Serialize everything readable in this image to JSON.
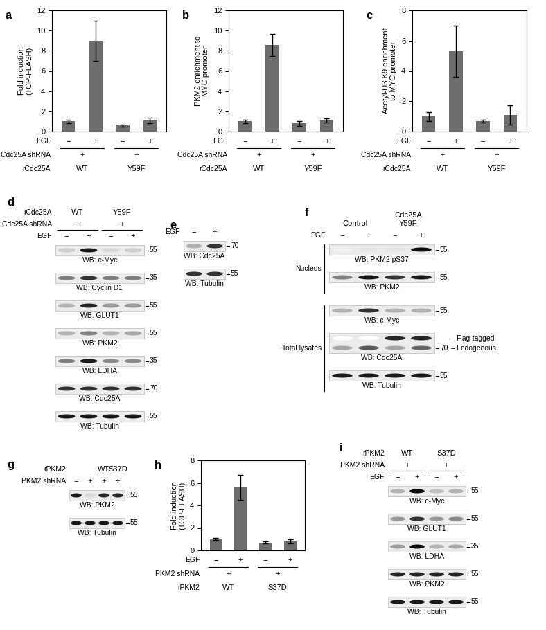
{
  "chart_data": [
    {
      "type": "bar",
      "title": "a",
      "y_label": "Fold induction\n(TOP-FLASH)",
      "values": [
        1.0,
        9.0,
        0.6,
        1.1
      ],
      "error": [
        0.15,
        2.0,
        0.1,
        0.25
      ],
      "color": "#6d6d6d",
      "ylim": [
        0,
        12
      ],
      "yticks": [
        0,
        2,
        4,
        6,
        8,
        10,
        12
      ],
      "tick_labels": "y",
      "conditions": [
        {
          "label": "EGF",
          "cells": [
            "−",
            "+",
            "−",
            "+"
          ],
          "span": 1
        },
        {
          "label": "Cdc25A shRNA",
          "cells": [
            "+",
            "+"
          ],
          "span": 2
        },
        {
          "label": "rCdc25A",
          "cells": [
            "WT",
            "Y59F"
          ],
          "span": 2
        }
      ]
    },
    {
      "type": "bar",
      "title": "b",
      "y_label": "PKM2 enrichment to\nMYC promoter",
      "values": [
        1.0,
        8.6,
        0.8,
        1.1
      ],
      "error": [
        0.15,
        1.1,
        0.25,
        0.2
      ],
      "color": "#6d6d6d",
      "ylim": [
        0,
        12
      ],
      "yticks": [
        0,
        2,
        4,
        6,
        8,
        10,
        12
      ],
      "tick_labels": "y",
      "conditions": [
        {
          "label": "EGF",
          "cells": [
            "−",
            "+",
            "−",
            "+"
          ],
          "span": 1
        },
        {
          "label": "Cdc25A shRNA",
          "cells": [
            "+",
            "+"
          ],
          "span": 2
        },
        {
          "label": "rCdc25A",
          "cells": [
            "WT",
            "Y59F"
          ],
          "span": 2
        }
      ]
    },
    {
      "type": "bar",
      "title": "c",
      "y_label": "Acetyl-H3 K9 enrichment\nto MYC promoter",
      "values": [
        1.0,
        5.3,
        0.7,
        1.1
      ],
      "error": [
        0.3,
        1.7,
        0.1,
        0.65
      ],
      "color": "#6d6d6d",
      "ylim": [
        0,
        8
      ],
      "yticks": [
        0,
        2,
        4,
        6,
        8
      ],
      "tick_labels": "y",
      "conditions": [
        {
          "label": "EGF",
          "cells": [
            "−",
            "+",
            "−",
            "+"
          ],
          "span": 1
        },
        {
          "label": "Cdc25A shRNA",
          "cells": [
            "+",
            "+"
          ],
          "span": 2
        },
        {
          "label": "rCdc25A",
          "cells": [
            "WT",
            "Y59F"
          ],
          "span": 2
        }
      ]
    },
    {
      "type": "bar",
      "title": "h",
      "y_label": "Fold induction\n(TOP-FLASH)",
      "values": [
        1.0,
        5.6,
        0.7,
        0.8
      ],
      "error": [
        0.1,
        1.1,
        0.1,
        0.2
      ],
      "color": "#6d6d6d",
      "ylim": [
        0,
        8
      ],
      "yticks": [
        0,
        2,
        4,
        6,
        8
      ],
      "tick_labels": "y",
      "conditions": [
        {
          "label": "EGF",
          "cells": [
            "−",
            "+",
            "−",
            "+"
          ],
          "span": 1
        },
        {
          "label": "PKM2 shRNA",
          "cells": [
            "+",
            "+"
          ],
          "span": 2
        },
        {
          "label": "rPKM2",
          "cells": [
            "WT",
            "S37D"
          ],
          "span": 2
        }
      ]
    }
  ],
  "blots": [
    {
      "panel": "d",
      "conditions": [
        {
          "label": "rCdc25A",
          "cells": [
            "WT",
            "Y59F"
          ],
          "span": 2
        },
        {
          "label": "Cdc25A shRNA",
          "cells": [
            "+",
            "+"
          ],
          "span": 2
        },
        {
          "label": "EGF",
          "cells": [
            "−",
            "+",
            "−",
            "+"
          ],
          "span": 1
        }
      ],
      "sections": [
        {
          "blots": [
            {
              "label": "WB: c-Myc",
              "marker": 55,
              "intensities": [
                0.2,
                0.9,
                0.15,
                0.2
              ]
            },
            {
              "label": "WB: Cyclin D1",
              "marker": 35,
              "intensities": [
                0.5,
                0.8,
                0.5,
                0.5
              ]
            },
            {
              "label": "WB: GLUT1",
              "marker": 55,
              "intensities": [
                0.3,
                0.85,
                0.4,
                0.4
              ]
            },
            {
              "label": "WB: PKM2",
              "marker": 55,
              "intensities": [
                0.3,
                0.5,
                0.3,
                0.35
              ]
            },
            {
              "label": "WB: LDHA",
              "marker": 35,
              "intensities": [
                0.5,
                0.9,
                0.45,
                0.45
              ]
            },
            {
              "label": "WB: Cdc25A",
              "marker": 70,
              "intensities": [
                0.8,
                0.8,
                0.8,
                0.8
              ]
            },
            {
              "label": "WB: Tubulin",
              "marker": 55,
              "intensities": [
                0.9,
                0.9,
                0.9,
                0.9
              ]
            }
          ]
        }
      ]
    },
    {
      "panel": "e",
      "conditions": [
        {
          "label": "EGF",
          "cells": [
            "−",
            "+"
          ],
          "span": 1
        }
      ],
      "sections": [
        {
          "blots": [
            {
              "label": "WB: Cdc25A",
              "marker": 70,
              "intensities": [
                0.3,
                0.8
              ]
            },
            {
              "label": "WB: Tubulin",
              "marker": 55,
              "intensities": [
                0.8,
                0.8
              ]
            }
          ]
        }
      ]
    },
    {
      "panel": "f",
      "conditions": [
        {
          "cells": [
            "Control",
            "Cdc25A\nY59F"
          ],
          "span": 2
        },
        {
          "label": "EGF",
          "cells": [
            "−",
            "+",
            "−",
            "+"
          ],
          "span": 1
        }
      ],
      "sections": [
        {
          "name": "Nucleus",
          "blots": [
            {
              "label": "WB: PKM2 pS37",
              "marker": 55,
              "intensities": [
                0.05,
                0.1,
                0.1,
                0.95
              ]
            },
            {
              "label": "WB: PKM2",
              "marker": 55,
              "intensities": [
                0.5,
                0.9,
                0.8,
                0.9
              ]
            }
          ]
        },
        {
          "name": "Total lysates",
          "blots": [
            {
              "label": "WB: c-Myc",
              "marker": 55,
              "intensities": [
                0.3,
                0.8,
                0.3,
                0.3
              ]
            },
            {
              "label": "WB: Cdc25A",
              "marker": 70,
              "bands": [
                {
                  "name": "Flag-tagged",
                  "intensities": [
                    0,
                    0,
                    0.85,
                    0.85
                  ]
                },
                {
                  "name": "Endogenous",
                  "intensities": [
                    0.35,
                    0.65,
                    0.35,
                    0.6
                  ]
                }
              ]
            },
            {
              "label": "WB: Tubulin",
              "marker": 55,
              "intensities": [
                0.9,
                0.9,
                0.9,
                0.9
              ]
            }
          ]
        }
      ]
    },
    {
      "panel": "g",
      "conditions": [
        {
          "label": "rPKM2",
          "cells": [
            null,
            null,
            "WT",
            "S37D"
          ],
          "span": 1
        },
        {
          "label": "PKM2 shRNA",
          "cells": [
            "−",
            "+",
            "+",
            "+"
          ],
          "span": 1
        }
      ],
      "sections": [
        {
          "blots": [
            {
              "label": "WB: PKM2",
              "marker": 55,
              "intensities": [
                0.9,
                0.15,
                0.85,
                0.85
              ]
            },
            {
              "label": "WB: Tubulin",
              "marker": 55,
              "intensities": [
                0.9,
                0.9,
                0.9,
                0.9
              ]
            }
          ]
        }
      ]
    },
    {
      "panel": "i",
      "conditions": [
        {
          "label": "rPKM2",
          "cells": [
            "WT",
            "S37D"
          ],
          "span": 2
        },
        {
          "label": "PKM2 shRNA",
          "cells": [
            "+",
            "+"
          ],
          "span": 2
        },
        {
          "label": "EGF",
          "cells": [
            "−",
            "+",
            "−",
            "+"
          ],
          "span": 1
        }
      ],
      "sections": [
        {
          "blots": [
            {
              "label": "WB: c-Myc",
              "marker": 55,
              "intensities": [
                0.3,
                0.95,
                0.25,
                0.3
              ]
            },
            {
              "label": "WB: GLUT1",
              "marker": 55,
              "intensities": [
                0.4,
                0.8,
                0.4,
                0.45
              ]
            },
            {
              "label": "WB: LDHA",
              "marker": 35,
              "intensities": [
                0.4,
                0.95,
                0.3,
                0.35
              ]
            },
            {
              "label": "WB: PKM2",
              "marker": 55,
              "intensities": [
                0.85,
                0.85,
                0.85,
                0.85
              ]
            },
            {
              "label": "WB: Tubulin",
              "marker": 55,
              "intensities": [
                0.9,
                0.9,
                0.9,
                0.9
              ]
            }
          ]
        }
      ]
    }
  ]
}
